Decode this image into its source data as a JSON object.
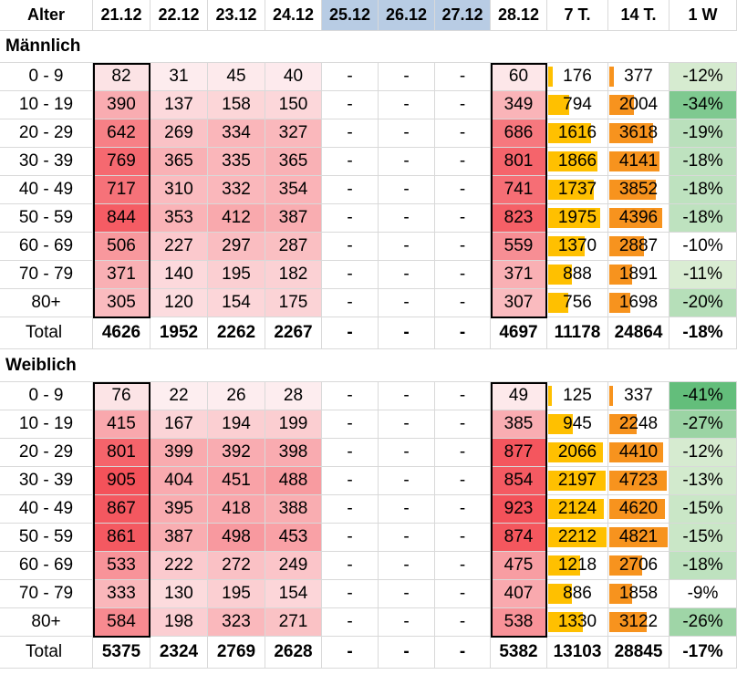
{
  "header": {
    "age_label": "Alter",
    "dates": [
      "21.12",
      "22.12",
      "23.12",
      "24.12",
      "25.12",
      "26.12",
      "27.12",
      "28.12"
    ],
    "sum7": "7 T.",
    "sum14": "14 T.",
    "change": "1 W"
  },
  "sections": [
    {
      "title": "Männlich",
      "rows": [
        {
          "age": "0 - 9",
          "v": [
            "82",
            "31",
            "45",
            "40",
            "-",
            "-",
            "-",
            "60"
          ],
          "s7": "176",
          "s14": "377",
          "w": "-12%"
        },
        {
          "age": "10 - 19",
          "v": [
            "390",
            "137",
            "158",
            "150",
            "-",
            "-",
            "-",
            "349"
          ],
          "s7": "794",
          "s14": "2004",
          "w": "-34%"
        },
        {
          "age": "20 - 29",
          "v": [
            "642",
            "269",
            "334",
            "327",
            "-",
            "-",
            "-",
            "686"
          ],
          "s7": "1616",
          "s14": "3618",
          "w": "-19%"
        },
        {
          "age": "30 - 39",
          "v": [
            "769",
            "365",
            "335",
            "365",
            "-",
            "-",
            "-",
            "801"
          ],
          "s7": "1866",
          "s14": "4141",
          "w": "-18%"
        },
        {
          "age": "40 - 49",
          "v": [
            "717",
            "310",
            "332",
            "354",
            "-",
            "-",
            "-",
            "741"
          ],
          "s7": "1737",
          "s14": "3852",
          "w": "-18%"
        },
        {
          "age": "50 - 59",
          "v": [
            "844",
            "353",
            "412",
            "387",
            "-",
            "-",
            "-",
            "823"
          ],
          "s7": "1975",
          "s14": "4396",
          "w": "-18%"
        },
        {
          "age": "60 - 69",
          "v": [
            "506",
            "227",
            "297",
            "287",
            "-",
            "-",
            "-",
            "559"
          ],
          "s7": "1370",
          "s14": "2887",
          "w": "-10%"
        },
        {
          "age": "70 - 79",
          "v": [
            "371",
            "140",
            "195",
            "182",
            "-",
            "-",
            "-",
            "371"
          ],
          "s7": "888",
          "s14": "1891",
          "w": "-11%"
        },
        {
          "age": "80+",
          "v": [
            "305",
            "120",
            "154",
            "175",
            "-",
            "-",
            "-",
            "307"
          ],
          "s7": "756",
          "s14": "1698",
          "w": "-20%"
        }
      ],
      "total": {
        "label": "Total",
        "v": [
          "4626",
          "1952",
          "2262",
          "2267",
          "-",
          "-",
          "-",
          "4697"
        ],
        "s7": "11178",
        "s14": "24864",
        "w": "-18%"
      }
    },
    {
      "title": "Weiblich",
      "rows": [
        {
          "age": "0 - 9",
          "v": [
            "76",
            "22",
            "26",
            "28",
            "-",
            "-",
            "-",
            "49"
          ],
          "s7": "125",
          "s14": "337",
          "w": "-41%"
        },
        {
          "age": "10 - 19",
          "v": [
            "415",
            "167",
            "194",
            "199",
            "-",
            "-",
            "-",
            "385"
          ],
          "s7": "945",
          "s14": "2248",
          "w": "-27%"
        },
        {
          "age": "20 - 29",
          "v": [
            "801",
            "399",
            "392",
            "398",
            "-",
            "-",
            "-",
            "877"
          ],
          "s7": "2066",
          "s14": "4410",
          "w": "-12%"
        },
        {
          "age": "30 - 39",
          "v": [
            "905",
            "404",
            "451",
            "488",
            "-",
            "-",
            "-",
            "854"
          ],
          "s7": "2197",
          "s14": "4723",
          "w": "-13%"
        },
        {
          "age": "40 - 49",
          "v": [
            "867",
            "395",
            "418",
            "388",
            "-",
            "-",
            "-",
            "923"
          ],
          "s7": "2124",
          "s14": "4620",
          "w": "-15%"
        },
        {
          "age": "50 - 59",
          "v": [
            "861",
            "387",
            "498",
            "453",
            "-",
            "-",
            "-",
            "874"
          ],
          "s7": "2212",
          "s14": "4821",
          "w": "-15%"
        },
        {
          "age": "60 - 69",
          "v": [
            "533",
            "222",
            "272",
            "249",
            "-",
            "-",
            "-",
            "475"
          ],
          "s7": "1218",
          "s14": "2706",
          "w": "-18%"
        },
        {
          "age": "70 - 79",
          "v": [
            "333",
            "130",
            "195",
            "154",
            "-",
            "-",
            "-",
            "407"
          ],
          "s7": "886",
          "s14": "1858",
          "w": "-9%"
        },
        {
          "age": "80+",
          "v": [
            "584",
            "198",
            "323",
            "271",
            "-",
            "-",
            "-",
            "538"
          ],
          "s7": "1330",
          "s14": "3122",
          "w": "-26%"
        }
      ],
      "total": {
        "label": "Total",
        "v": [
          "5375",
          "2324",
          "2769",
          "2628",
          "-",
          "-",
          "-",
          "5382"
        ],
        "s7": "13103",
        "s14": "28845",
        "w": "-17%"
      }
    }
  ],
  "colors": {
    "heat_low": "#fdeef0",
    "heat_high": "#f4525a",
    "bar_7": "#ffc000",
    "bar_14": "#f7931e",
    "change_light": "#e2f0d9",
    "change_strong": "#63be7b",
    "header_blue": "#b8cce4"
  }
}
